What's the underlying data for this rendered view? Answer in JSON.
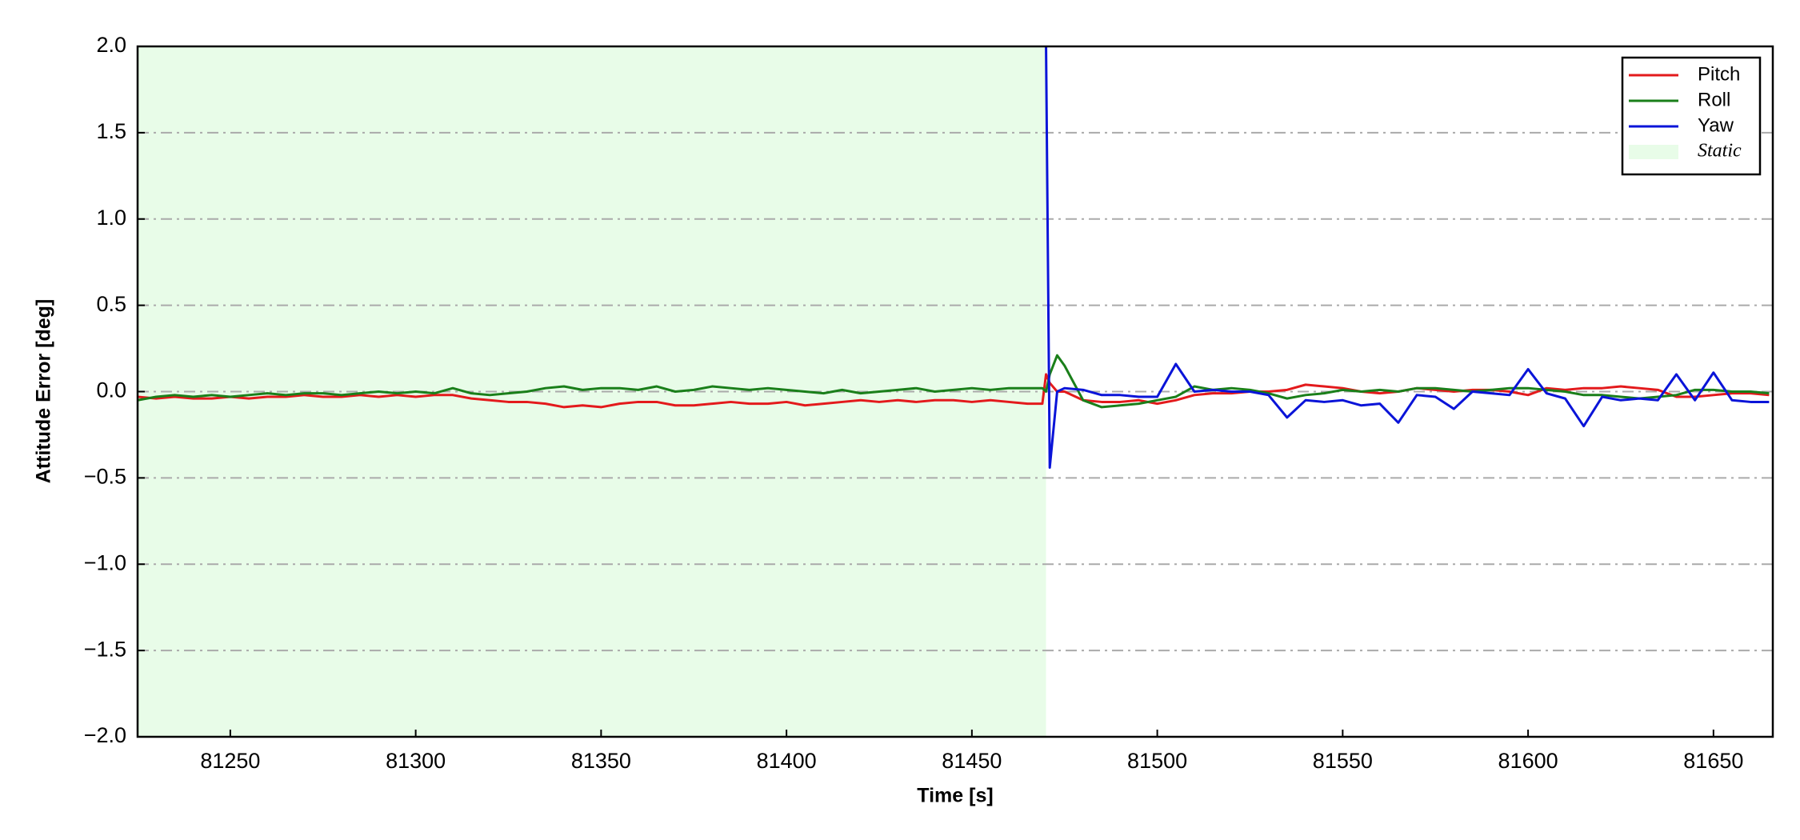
{
  "chart_data": {
    "type": "line",
    "xlabel": "Time [s]",
    "ylabel": "Attitude Error [deg]",
    "xlim": [
      81225,
      81666
    ],
    "ylim": [
      -2,
      2
    ],
    "xticks": [
      81250,
      81300,
      81350,
      81400,
      81450,
      81500,
      81550,
      81600,
      81650
    ],
    "yticks": [
      {
        "value": -2,
        "label": "−2.0"
      },
      {
        "value": -1.5,
        "label": "−1.5"
      },
      {
        "value": -1,
        "label": "−1.0"
      },
      {
        "value": -0.5,
        "label": "−0.5"
      },
      {
        "value": 0,
        "label": "0.0"
      },
      0.5,
      {
        "value": 1,
        "label": "1.0"
      },
      1.5,
      {
        "value": 2,
        "label": "2.0"
      }
    ],
    "grid": true,
    "legend": "upper right",
    "spans": [
      {
        "name": "Static",
        "start": 81225,
        "end": 81470,
        "color": "#e8fce8"
      }
    ],
    "x": [
      81225,
      81230,
      81235,
      81240,
      81245,
      81250,
      81255,
      81260,
      81265,
      81270,
      81275,
      81280,
      81285,
      81290,
      81295,
      81300,
      81305,
      81310,
      81315,
      81320,
      81325,
      81330,
      81335,
      81340,
      81345,
      81350,
      81355,
      81360,
      81365,
      81370,
      81375,
      81380,
      81385,
      81390,
      81395,
      81400,
      81405,
      81410,
      81415,
      81420,
      81425,
      81430,
      81435,
      81440,
      81445,
      81450,
      81455,
      81460,
      81465,
      81469,
      81470,
      81471,
      81473,
      81475,
      81480,
      81485,
      81490,
      81495,
      81500,
      81505,
      81510,
      81515,
      81520,
      81525,
      81530,
      81535,
      81540,
      81545,
      81550,
      81555,
      81560,
      81565,
      81570,
      81575,
      81580,
      81585,
      81590,
      81595,
      81600,
      81605,
      81610,
      81615,
      81620,
      81625,
      81630,
      81635,
      81640,
      81645,
      81650,
      81655,
      81660,
      81665
    ],
    "series": [
      {
        "name": "Pitch",
        "color": "#e31a1c",
        "values": [
          -0.03,
          -0.04,
          -0.03,
          -0.04,
          -0.04,
          -0.03,
          -0.04,
          -0.03,
          -0.03,
          -0.02,
          -0.03,
          -0.03,
          -0.02,
          -0.03,
          -0.02,
          -0.03,
          -0.02,
          -0.02,
          -0.04,
          -0.05,
          -0.06,
          -0.06,
          -0.07,
          -0.09,
          -0.08,
          -0.09,
          -0.07,
          -0.06,
          -0.06,
          -0.08,
          -0.08,
          -0.07,
          -0.06,
          -0.07,
          -0.07,
          -0.06,
          -0.08,
          -0.07,
          -0.06,
          -0.05,
          -0.06,
          -0.05,
          -0.06,
          -0.05,
          -0.05,
          -0.06,
          -0.05,
          -0.06,
          -0.07,
          -0.07,
          0.1,
          0.05,
          0.0,
          0.0,
          -0.05,
          -0.06,
          -0.06,
          -0.05,
          -0.07,
          -0.05,
          -0.02,
          -0.01,
          -0.01,
          0.0,
          0.0,
          0.01,
          0.04,
          0.03,
          0.02,
          0.0,
          -0.01,
          0.0,
          0.02,
          0.01,
          0.0,
          0.01,
          0.01,
          0.0,
          -0.02,
          0.02,
          0.01,
          0.02,
          0.02,
          0.03,
          0.02,
          0.01,
          -0.03,
          -0.03,
          -0.02,
          -0.01,
          -0.01,
          -0.02
        ]
      },
      {
        "name": "Roll",
        "color": "#1a7f1a",
        "values": [
          -0.05,
          -0.03,
          -0.02,
          -0.03,
          -0.02,
          -0.03,
          -0.02,
          -0.01,
          -0.02,
          -0.01,
          -0.01,
          -0.02,
          -0.01,
          0.0,
          -0.01,
          0.0,
          -0.01,
          0.02,
          -0.01,
          -0.02,
          -0.01,
          0.0,
          0.02,
          0.03,
          0.01,
          0.02,
          0.02,
          0.01,
          0.03,
          0.0,
          0.01,
          0.03,
          0.02,
          0.01,
          0.02,
          0.01,
          0.0,
          -0.01,
          0.01,
          -0.01,
          0.0,
          0.01,
          0.02,
          0.0,
          0.01,
          0.02,
          0.01,
          0.02,
          0.02,
          0.02,
          0.0,
          0.1,
          0.21,
          0.15,
          -0.05,
          -0.09,
          -0.08,
          -0.07,
          -0.05,
          -0.03,
          0.03,
          0.01,
          0.02,
          0.01,
          -0.01,
          -0.04,
          -0.02,
          -0.01,
          0.01,
          0.0,
          0.01,
          0.0,
          0.02,
          0.02,
          0.01,
          0.0,
          0.01,
          0.02,
          0.02,
          0.01,
          0.0,
          -0.02,
          -0.02,
          -0.03,
          -0.04,
          -0.03,
          -0.02,
          0.01,
          0.01,
          0.0,
          0.0,
          -0.01
        ]
      },
      {
        "name": "Yaw",
        "color": "#0a14d8",
        "values": [
          null,
          null,
          null,
          null,
          null,
          null,
          null,
          null,
          null,
          null,
          null,
          null,
          null,
          null,
          null,
          null,
          null,
          null,
          null,
          null,
          null,
          null,
          null,
          null,
          null,
          null,
          null,
          null,
          null,
          null,
          null,
          null,
          null,
          null,
          null,
          null,
          null,
          null,
          null,
          null,
          null,
          null,
          null,
          null,
          null,
          null,
          null,
          null,
          null,
          null,
          2.0,
          -0.44,
          0.0,
          0.02,
          0.01,
          -0.02,
          -0.02,
          -0.03,
          -0.03,
          0.16,
          0.0,
          0.01,
          0.0,
          0.0,
          -0.02,
          -0.15,
          -0.05,
          -0.06,
          -0.05,
          -0.08,
          -0.07,
          -0.18,
          -0.02,
          -0.03,
          -0.1,
          0.0,
          -0.01,
          -0.02,
          0.13,
          -0.01,
          -0.04,
          -0.2,
          -0.03,
          -0.05,
          -0.04,
          -0.05,
          0.1,
          -0.05,
          0.11,
          -0.05,
          -0.06,
          -0.06
        ]
      }
    ]
  }
}
